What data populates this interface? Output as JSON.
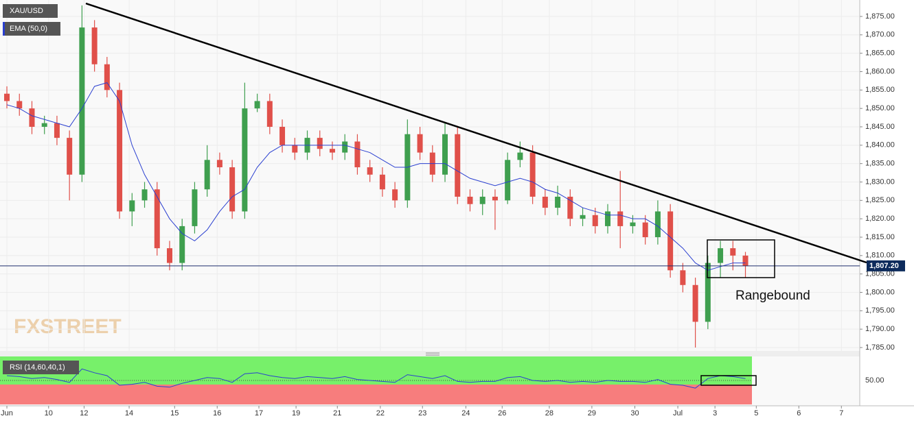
{
  "chart_data": {
    "type": "candlestick",
    "symbol": "XAU/USD",
    "watermark": "FXSTREET",
    "annotation": "Rangebound",
    "up_color": "#3f9f4f",
    "down_color": "#e0504a",
    "x": [
      0,
      0.3,
      0.6,
      0.9,
      1.2,
      1.5,
      1.8,
      2.1,
      2.4,
      2.7,
      3,
      3.3,
      3.6,
      3.9,
      4.2,
      4.5,
      4.8,
      5.1,
      5.4,
      5.7,
      6,
      6.3,
      6.6,
      6.9,
      7.2,
      7.5,
      7.8,
      8.1,
      8.4,
      8.7,
      9,
      9.3,
      9.6,
      9.9,
      10.2,
      10.5,
      10.8,
      11.1,
      11.4,
      11.7,
      12,
      12.3,
      12.6,
      12.9,
      13.2,
      13.5,
      13.8,
      14.1,
      14.4,
      14.7,
      15,
      15.3,
      15.6,
      15.9,
      16.2,
      16.5,
      16.8,
      17.1,
      17.4,
      17.7
    ],
    "open": [
      1854,
      1852,
      1850,
      1845,
      1846,
      1842,
      1832,
      1872,
      1862,
      1855,
      1822,
      1825,
      1828,
      1812,
      1808,
      1818,
      1828,
      1836,
      1834,
      1822,
      1850,
      1852,
      1845,
      1840,
      1838,
      1842,
      1839,
      1838,
      1841,
      1834,
      1832,
      1828,
      1825,
      1843,
      1838,
      1832,
      1843,
      1826,
      1824,
      1826,
      1825,
      1836,
      1838,
      1826,
      1823,
      1826,
      1820,
      1821,
      1818,
      1822,
      1818,
      1819,
      1815,
      1822,
      1806,
      1802,
      1792,
      1808,
      1812,
      1810
    ],
    "high": [
      1856,
      1854,
      1852,
      1848,
      1848,
      1844,
      1878,
      1874,
      1864,
      1857,
      1827,
      1830,
      1830,
      1814,
      1820,
      1830,
      1840,
      1838,
      1836,
      1857,
      1854,
      1854,
      1847,
      1842,
      1844,
      1844,
      1841,
      1843,
      1843,
      1836,
      1834,
      1830,
      1847,
      1845,
      1840,
      1846,
      1845,
      1828,
      1828,
      1828,
      1838,
      1841,
      1840,
      1828,
      1829,
      1828,
      1823,
      1823,
      1824,
      1833,
      1821,
      1821,
      1825,
      1824,
      1808,
      1804,
      1810,
      1814,
      1814,
      1811
    ],
    "low": [
      1850,
      1848,
      1843,
      1843,
      1840,
      1825,
      1830,
      1860,
      1853,
      1820,
      1818,
      1823,
      1810,
      1806,
      1806,
      1816,
      1826,
      1832,
      1820,
      1820,
      1849,
      1843,
      1838,
      1836,
      1836,
      1837,
      1836,
      1836,
      1832,
      1830,
      1826,
      1823,
      1823,
      1836,
      1830,
      1830,
      1824,
      1822,
      1821,
      1817,
      1824,
      1834,
      1824,
      1821,
      1821,
      1818,
      1818,
      1816,
      1816,
      1812,
      1816,
      1813,
      1813,
      1804,
      1800,
      1785,
      1790,
      1804,
      1806,
      1804
    ],
    "close": [
      1852,
      1850,
      1845,
      1846,
      1842,
      1832,
      1872,
      1862,
      1855,
      1822,
      1825,
      1828,
      1812,
      1808,
      1818,
      1828,
      1836,
      1834,
      1822,
      1850,
      1852,
      1845,
      1840,
      1838,
      1842,
      1839,
      1838,
      1841,
      1834,
      1832,
      1828,
      1825,
      1843,
      1838,
      1832,
      1843,
      1826,
      1824,
      1826,
      1825,
      1836,
      1838,
      1826,
      1823,
      1826,
      1820,
      1821,
      1818,
      1822,
      1818,
      1819,
      1815,
      1822,
      1806,
      1802,
      1792,
      1808,
      1812,
      1810,
      1807.2
    ],
    "ema": {
      "name": "EMA (50,0)",
      "color": "#2a3fd0",
      "values": [
        1851,
        1850,
        1848,
        1847,
        1846,
        1845,
        1850,
        1856,
        1857,
        1852,
        1840,
        1832,
        1826,
        1820,
        1816,
        1814,
        1817,
        1822,
        1826,
        1828,
        1834,
        1838,
        1840,
        1840,
        1840,
        1840,
        1840,
        1840,
        1839,
        1838,
        1836,
        1834,
        1834,
        1835,
        1835,
        1835,
        1833,
        1831,
        1830,
        1829,
        1830,
        1831,
        1830,
        1828,
        1827,
        1825,
        1823,
        1822,
        1821,
        1821,
        1820,
        1820,
        1818,
        1815,
        1812,
        1808,
        1806,
        1807,
        1808,
        1808
      ]
    },
    "last_price": {
      "value": 1807.2,
      "label": "1,807.20"
    },
    "xlim": [
      -0.165,
      20.44
    ],
    "xticks": [
      {
        "value": 0,
        "label": "Jun"
      },
      {
        "value": 1,
        "label": "10"
      },
      {
        "value": 1.85,
        "label": "12"
      },
      {
        "value": 2.93,
        "label": "14"
      },
      {
        "value": 4.02,
        "label": "15"
      },
      {
        "value": 5.04,
        "label": "16"
      },
      {
        "value": 6.04,
        "label": "17"
      },
      {
        "value": 6.93,
        "label": "19"
      },
      {
        "value": 7.92,
        "label": "21"
      },
      {
        "value": 8.95,
        "label": "22"
      },
      {
        "value": 9.96,
        "label": "23"
      },
      {
        "value": 11,
        "label": "24"
      },
      {
        "value": 11.87,
        "label": "26"
      },
      {
        "value": 13,
        "label": "28"
      },
      {
        "value": 14.02,
        "label": "29"
      },
      {
        "value": 15.05,
        "label": "30"
      },
      {
        "value": 16.08,
        "label": "Jul"
      },
      {
        "value": 16.97,
        "label": "3"
      },
      {
        "value": 17.96,
        "label": "5"
      },
      {
        "value": 18.98,
        "label": "6"
      },
      {
        "value": 20,
        "label": "7"
      }
    ],
    "ylim": [
      1784.07,
      1879.47
    ],
    "yticks": [
      {
        "value": 1785,
        "label": "1,785.00"
      },
      {
        "value": 1790,
        "label": "1,790.00"
      },
      {
        "value": 1795,
        "label": "1,795.00"
      },
      {
        "value": 1800,
        "label": "1,800.00"
      },
      {
        "value": 1805,
        "label": "1,805.00"
      },
      {
        "value": 1810,
        "label": "1,810.00"
      },
      {
        "value": 1815,
        "label": "1,815.00"
      },
      {
        "value": 1820,
        "label": "1,820.00"
      },
      {
        "value": 1825,
        "label": "1,825.00"
      },
      {
        "value": 1830,
        "label": "1,830.00"
      },
      {
        "value": 1835,
        "label": "1,835.00"
      },
      {
        "value": 1840,
        "label": "1,840.00"
      },
      {
        "value": 1845,
        "label": "1,845.00"
      },
      {
        "value": 1850,
        "label": "1,850.00"
      },
      {
        "value": 1855,
        "label": "1,855.00"
      },
      {
        "value": 1860,
        "label": "1,860.00"
      },
      {
        "value": 1865,
        "label": "1,865.00"
      },
      {
        "value": 1870,
        "label": "1,870.00"
      },
      {
        "value": 1875,
        "label": "1,875.00"
      }
    ],
    "rsi": {
      "name": "RSI (14,60,40,1)",
      "color": "#2a3fd0",
      "ylim": [
        25,
        75
      ],
      "yticks": [
        {
          "value": 50,
          "label": "50.00"
        }
      ],
      "values": [
        55,
        54,
        52,
        53,
        51,
        48,
        62,
        58,
        55,
        45,
        46,
        48,
        44,
        43,
        47,
        50,
        53,
        52,
        48,
        57,
        58,
        55,
        53,
        52,
        54,
        53,
        52,
        54,
        51,
        50,
        49,
        48,
        56,
        54,
        52,
        55,
        49,
        48,
        49,
        49,
        53,
        54,
        50,
        49,
        50,
        48,
        49,
        48,
        50,
        49,
        49,
        48,
        51,
        46,
        45,
        42,
        52,
        55,
        54,
        52
      ]
    }
  }
}
